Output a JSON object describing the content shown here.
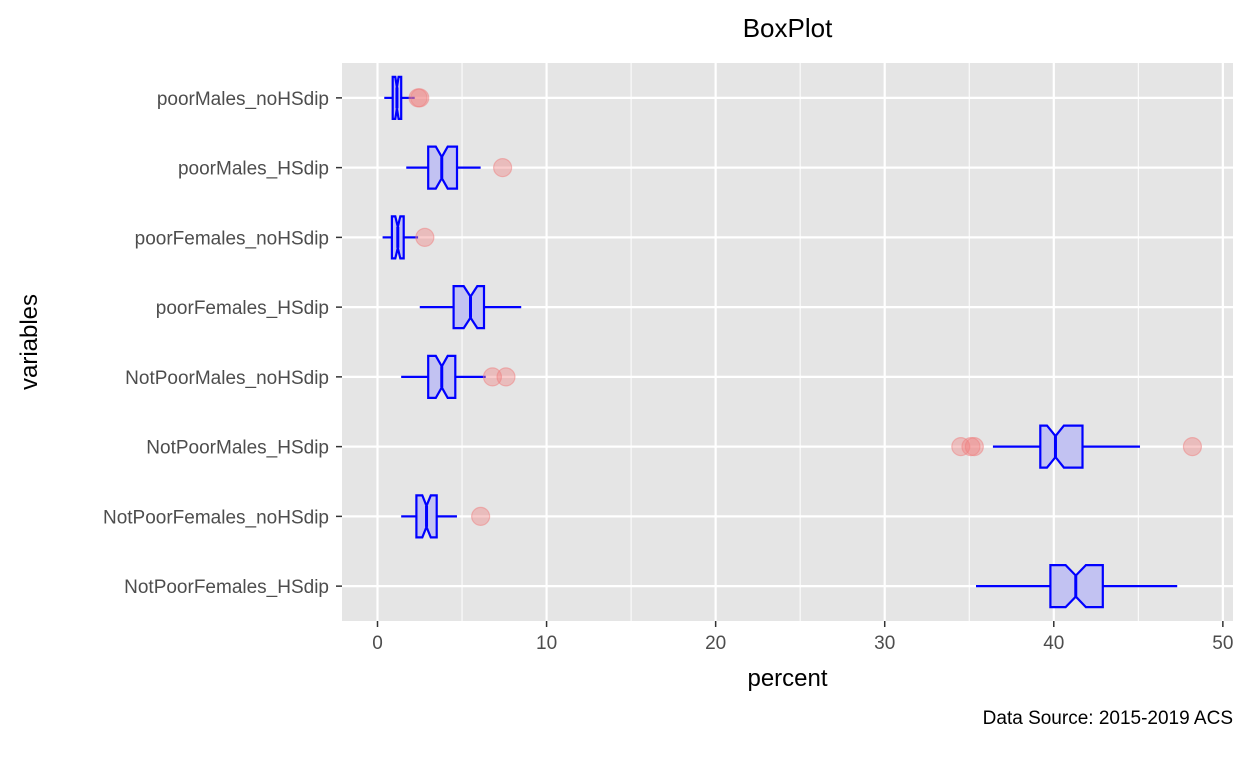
{
  "chart_data": {
    "type": "boxplot",
    "title": "BoxPlot",
    "xlabel": "percent",
    "ylabel": "variables",
    "caption": "Data Source: 2015-2019 ACS",
    "xlim": [
      -2.1,
      50.6
    ],
    "xticks": [
      0,
      10,
      20,
      30,
      40,
      50
    ],
    "xtick_labels": [
      "0",
      "10",
      "20",
      "30",
      "40",
      "50"
    ],
    "grid": true,
    "notched": true,
    "colors": {
      "panel_bg": "#e5e5e5",
      "grid": "#ffffff",
      "box_stroke": "#0000ff",
      "box_fill": "#c2c2f2",
      "outlier": "#f08080"
    },
    "categories": [
      "poorMales_noHSdip",
      "poorMales_HSdip",
      "poorFemales_noHSdip",
      "poorFemales_HSdip",
      "NotPoorMales_noHSdip",
      "NotPoorMales_HSdip",
      "NotPoorFemales_noHSdip",
      "NotPoorFemales_HSdip"
    ],
    "boxes": [
      {
        "category": "poorMales_noHSdip",
        "whisker_low": 0.4,
        "q1": 0.9,
        "median": 1.15,
        "q3": 1.4,
        "whisker_high": 2.2,
        "notch_low": 1.05,
        "notch_high": 1.25,
        "outliers": [
          2.4,
          2.5
        ]
      },
      {
        "category": "poorMales_HSdip",
        "whisker_low": 1.7,
        "q1": 3.0,
        "median": 3.8,
        "q3": 4.7,
        "whisker_high": 6.1,
        "notch_low": 3.45,
        "notch_high": 4.15,
        "outliers": [
          7.4
        ]
      },
      {
        "category": "poorFemales_noHSdip",
        "whisker_low": 0.3,
        "q1": 0.85,
        "median": 1.2,
        "q3": 1.55,
        "whisker_high": 2.4,
        "notch_low": 1.05,
        "notch_high": 1.35,
        "outliers": [
          2.8
        ]
      },
      {
        "category": "poorFemales_HSdip",
        "whisker_low": 2.5,
        "q1": 4.5,
        "median": 5.5,
        "q3": 6.3,
        "whisker_high": 8.5,
        "notch_low": 5.1,
        "notch_high": 5.9,
        "outliers": []
      },
      {
        "category": "NotPoorMales_noHSdip",
        "whisker_low": 1.4,
        "q1": 3.0,
        "median": 3.8,
        "q3": 4.6,
        "whisker_high": 6.4,
        "notch_low": 3.45,
        "notch_high": 4.15,
        "outliers": [
          6.8,
          7.6
        ]
      },
      {
        "category": "NotPoorMales_HSdip",
        "whisker_low": 36.4,
        "q1": 39.2,
        "median": 40.1,
        "q3": 41.7,
        "whisker_high": 45.1,
        "notch_low": 39.6,
        "notch_high": 40.6,
        "outliers": [
          34.5,
          35.1,
          35.3,
          48.2
        ]
      },
      {
        "category": "NotPoorFemales_noHSdip",
        "whisker_low": 1.4,
        "q1": 2.3,
        "median": 2.9,
        "q3": 3.5,
        "whisker_high": 4.7,
        "notch_low": 2.65,
        "notch_high": 3.15,
        "outliers": [
          6.1
        ]
      },
      {
        "category": "NotPoorFemales_HSdip",
        "whisker_low": 35.4,
        "q1": 39.8,
        "median": 41.3,
        "q3": 42.9,
        "whisker_high": 47.3,
        "notch_low": 40.7,
        "notch_high": 41.9,
        "outliers": []
      }
    ]
  }
}
